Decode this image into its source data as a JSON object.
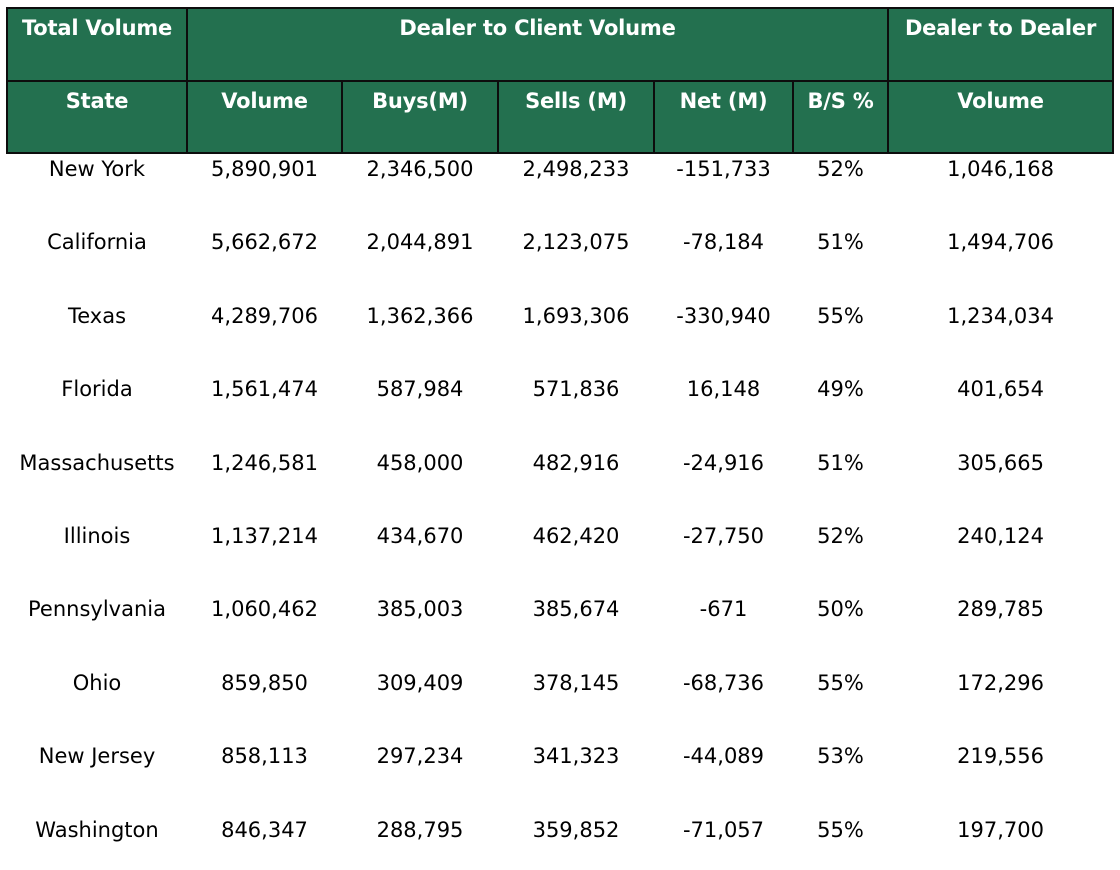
{
  "header": {
    "group_row": {
      "total_volume": "Total Volume",
      "dealer_to_client": "Dealer to Client Volume",
      "dealer_to_dealer": "Dealer to Dealer"
    },
    "columns": [
      "State",
      "Volume",
      "Buys(M)",
      "Sells (M)",
      "Net (M)",
      "B/S %",
      "Volume"
    ]
  },
  "rows": [
    [
      "New York",
      "5,890,901",
      "2,346,500",
      "2,498,233",
      "-151,733",
      "52%",
      "1,046,168"
    ],
    [
      "California",
      "5,662,672",
      "2,044,891",
      "2,123,075",
      "-78,184",
      "51%",
      "1,494,706"
    ],
    [
      "Texas",
      "4,289,706",
      "1,362,366",
      "1,693,306",
      "-330,940",
      "55%",
      "1,234,034"
    ],
    [
      "Florida",
      "1,561,474",
      "587,984",
      "571,836",
      "16,148",
      "49%",
      "401,654"
    ],
    [
      "Massachusetts",
      "1,246,581",
      "458,000",
      "482,916",
      "-24,916",
      "51%",
      "305,665"
    ],
    [
      "Illinois",
      "1,137,214",
      "434,670",
      "462,420",
      "-27,750",
      "52%",
      "240,124"
    ],
    [
      "Pennsylvania",
      "1,060,462",
      "385,003",
      "385,674",
      "-671",
      "50%",
      "289,785"
    ],
    [
      "Ohio",
      "859,850",
      "309,409",
      "378,145",
      "-68,736",
      "55%",
      "172,296"
    ],
    [
      "New Jersey",
      "858,113",
      "297,234",
      "341,323",
      "-44,089",
      "53%",
      "219,556"
    ],
    [
      "Washington",
      "846,347",
      "288,795",
      "359,852",
      "-71,057",
      "55%",
      "197,700"
    ]
  ],
  "colors": {
    "header_background": "#23704f",
    "header_text": "#ffffff",
    "border": "#0d0d0d"
  }
}
